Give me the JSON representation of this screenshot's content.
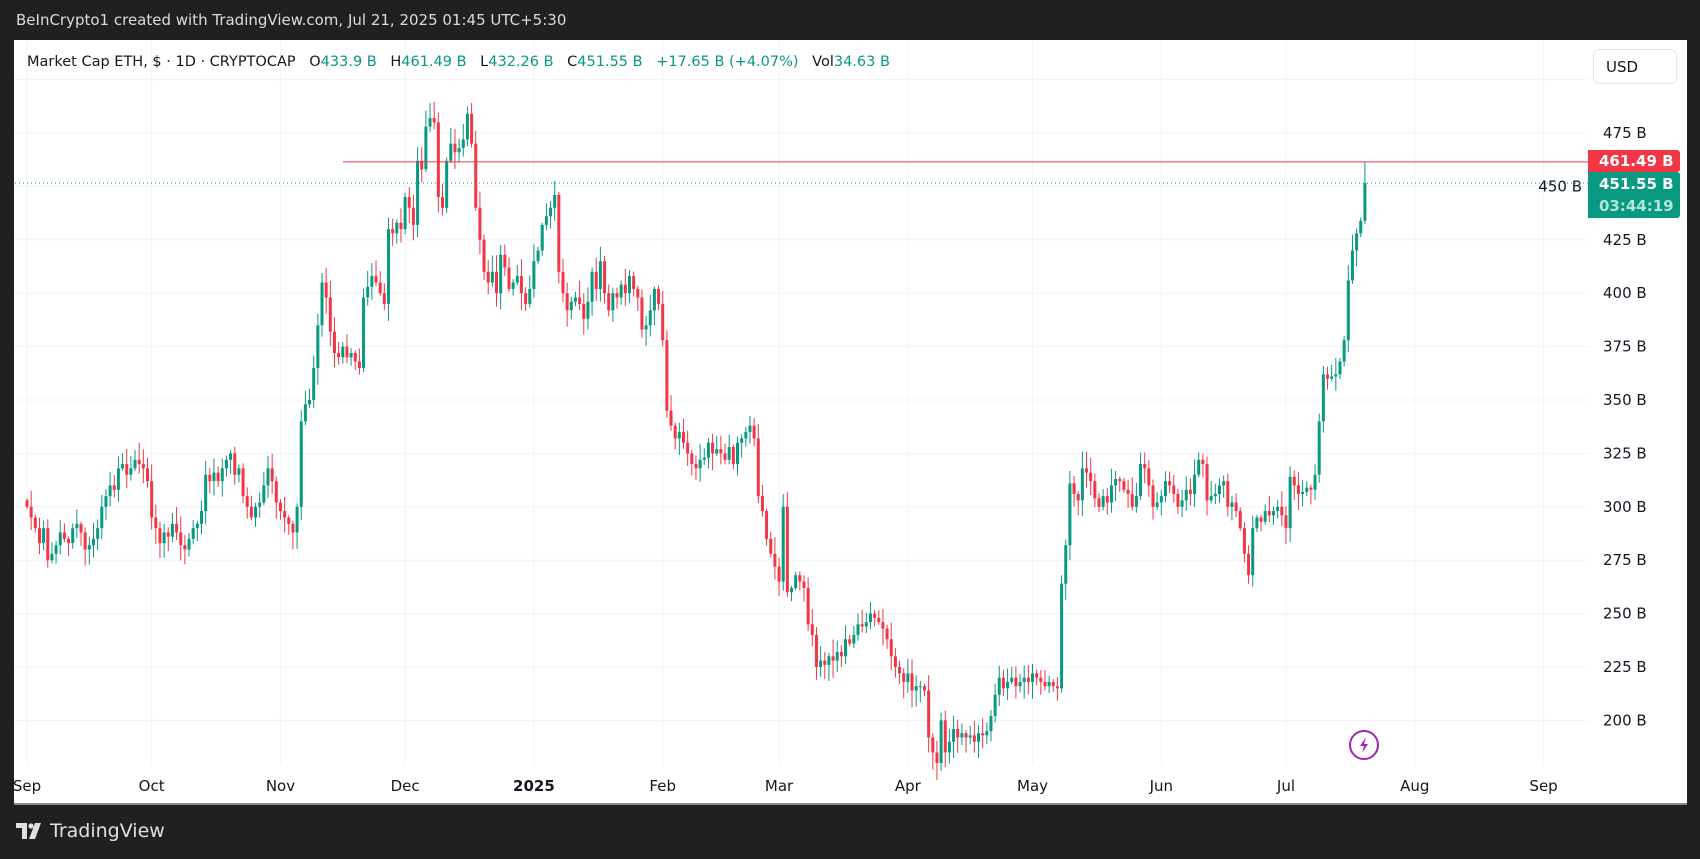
{
  "header": {
    "caption": "BeInCrypto1 created with TradingView.com, Jul 21, 2025 01:45 UTC+5:30"
  },
  "legend": {
    "symbol": "Market Cap ETH, $ · 1D · CRYPTOCAP",
    "o_label": "O",
    "o_value": "433.9 B",
    "h_label": "H",
    "h_value": "461.49 B",
    "l_label": "L",
    "l_value": "432.26 B",
    "c_label": "C",
    "c_value": "451.55 B",
    "change": "+17.65 B (+4.07%)",
    "vol_label": "Vol",
    "vol_value": "34.63 B"
  },
  "currency_button": "USD",
  "price_badges": {
    "high_label": "461.49 B",
    "last_label": "451.55 B",
    "countdown": "03:44:19"
  },
  "footer": {
    "brand": "TradingView"
  },
  "colors": {
    "up": "#089981",
    "down": "#f23645",
    "grid": "#f0f3fa",
    "alert_icon": "#9c27b0"
  },
  "icons": {
    "alert": "lightning-bolt-icon",
    "logo": "tradingview-logo-icon"
  },
  "chart_data": {
    "type": "candlestick",
    "title": "Market Cap ETH, $ · 1D · CRYPTOCAP",
    "unit": "B",
    "yticks": [
      "200 B",
      "225 B",
      "250 B",
      "275 B",
      "300 B",
      "325 B",
      "350 B",
      "375 B",
      "400 B",
      "425 B",
      "450 B",
      "475 B"
    ],
    "ytick_values": [
      200,
      225,
      250,
      275,
      300,
      325,
      350,
      375,
      400,
      425,
      450,
      475
    ],
    "ylim": [
      183,
      500
    ],
    "xticks": [
      {
        "label": "Sep",
        "date": "2024-09-01"
      },
      {
        "label": "Oct",
        "date": "2024-10-01"
      },
      {
        "label": "Nov",
        "date": "2024-11-01"
      },
      {
        "label": "Dec",
        "date": "2024-12-01"
      },
      {
        "label": "2025",
        "date": "2025-01-01",
        "bold": true
      },
      {
        "label": "Feb",
        "date": "2025-02-01"
      },
      {
        "label": "Mar",
        "date": "2025-03-01"
      },
      {
        "label": "Apr",
        "date": "2025-04-01"
      },
      {
        "label": "May",
        "date": "2025-05-01"
      },
      {
        "label": "Jun",
        "date": "2025-06-01"
      },
      {
        "label": "Jul",
        "date": "2025-07-01"
      },
      {
        "label": "Aug",
        "date": "2025-08-01"
      },
      {
        "label": "Sep",
        "date": "2025-09-01"
      }
    ],
    "grid": true,
    "horizontal_line": {
      "value": 461.49,
      "label": "461.49 B",
      "color": "#f23645"
    },
    "last_price_line": {
      "value": 451.55,
      "label": "451.55 B",
      "color": "#089981"
    },
    "last_candle": {
      "date": "2025-07-20",
      "open": 433.9,
      "high": 461.49,
      "low": 432.26,
      "close": 451.55
    },
    "daily_closes_by_month": [
      {
        "month": "2024-09",
        "closes": [
          300,
          295,
          290,
          283,
          290,
          275,
          278,
          282,
          288,
          285,
          283,
          290,
          292,
          288,
          280,
          282,
          285,
          290,
          300,
          305,
          310,
          308,
          318,
          320,
          315,
          318,
          322,
          320,
          318,
          312
        ]
      },
      {
        "month": "2024-10",
        "closes": [
          295,
          290,
          283,
          288,
          286,
          292,
          288,
          282,
          280,
          285,
          290,
          292,
          298,
          315,
          312,
          316,
          312,
          318,
          322,
          325,
          315,
          318,
          305,
          300,
          295,
          300,
          302,
          310,
          318,
          312,
          302
        ]
      },
      {
        "month": "2024-11",
        "closes": [
          298,
          295,
          292,
          288,
          300,
          340,
          348,
          350,
          365,
          385,
          405,
          398,
          382,
          372,
          370,
          375,
          370,
          372,
          368,
          365,
          398,
          403,
          408,
          405,
          400,
          395,
          430,
          428,
          433,
          430
        ]
      },
      {
        "month": "2024-12",
        "closes": [
          445,
          440,
          432,
          462,
          458,
          478,
          482,
          480,
          445,
          440,
          462,
          470,
          466,
          468,
          472,
          484,
          470,
          440,
          425,
          410,
          405,
          410,
          400,
          418,
          412,
          402,
          405,
          408,
          400,
          395,
          402
        ]
      },
      {
        "month": "2025-01",
        "closes": [
          415,
          420,
          432,
          436,
          440,
          446,
          410,
          400,
          392,
          396,
          398,
          395,
          388,
          396,
          410,
          402,
          415,
          400,
          392,
          400,
          398,
          404,
          400,
          408,
          402,
          398,
          383,
          385,
          392,
          402,
          395
        ]
      },
      {
        "month": "2025-02",
        "closes": [
          378,
          345,
          338,
          332,
          335,
          330,
          325,
          320,
          318,
          322,
          323,
          330,
          325,
          327,
          325,
          322,
          328,
          320,
          330,
          332,
          335,
          338,
          332,
          305,
          298,
          285,
          278,
          272
        ]
      },
      {
        "month": "2025-03",
        "closes": [
          265,
          300,
          260,
          262,
          268,
          265,
          262,
          245,
          240,
          225,
          228,
          226,
          230,
          228,
          232,
          230,
          238,
          236,
          240,
          245,
          244,
          246,
          250,
          248,
          246,
          243,
          238,
          230,
          225,
          222,
          218
        ]
      },
      {
        "month": "2025-04",
        "closes": [
          222,
          214,
          216,
          216,
          214,
          192,
          185,
          180,
          200,
          185,
          190,
          196,
          192,
          194,
          192,
          193,
          190,
          194,
          193,
          195,
          202,
          212,
          220,
          215,
          218,
          220,
          216,
          218,
          220,
          218
        ]
      },
      {
        "month": "2025-05",
        "closes": [
          222,
          220,
          218,
          216,
          218,
          216,
          215,
          264,
          282,
          311,
          306,
          303,
          318,
          316,
          312,
          304,
          300,
          305,
          302,
          310,
          313,
          312,
          308,
          306,
          300,
          305,
          320,
          318,
          310,
          300,
          302
        ]
      },
      {
        "month": "2025-06",
        "closes": [
          305,
          312,
          310,
          306,
          300,
          303,
          308,
          306,
          315,
          322,
          320,
          303,
          305,
          306,
          310,
          312,
          300,
          302,
          298,
          290,
          278,
          268,
          290,
          295,
          293,
          298,
          296,
          298,
          300,
          296
        ]
      },
      {
        "month": "2025-07",
        "closes": [
          290,
          314,
          310,
          306,
          307,
          309,
          308,
          315,
          340,
          362,
          360,
          361,
          362,
          368,
          378,
          406,
          420,
          428,
          433.9,
          451.55
        ]
      }
    ]
  }
}
